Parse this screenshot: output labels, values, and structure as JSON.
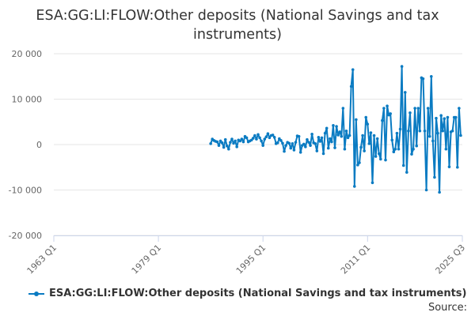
{
  "chart_data": {
    "type": "line",
    "title": "ESA:GG:LI:FLOW:Other deposits (National Savings and tax instruments)",
    "xlabel": "",
    "ylabel": "",
    "ylim": [
      -20000,
      20000
    ],
    "yticks": [
      20000,
      10000,
      0,
      -10000,
      -20000
    ],
    "ytick_labels": [
      "20 000",
      "10 000",
      "0",
      "-10 000",
      "-20 000"
    ],
    "xtick_labels": [
      "1963 Q1",
      "1979 Q1",
      "1995 Q1",
      "2011 Q1",
      "2025 Q3"
    ],
    "xrange": [
      "1963 Q1",
      "2025 Q3"
    ],
    "grid": true,
    "legend_position": "bottom",
    "series": [
      {
        "name": "ESA:GG:LI:FLOW:Other deposits (National Savings and tax instruments)",
        "color": "#0a7bc2",
        "start": "1987 Q1",
        "frequency": "quarterly",
        "values": [
          200,
          1200,
          900,
          700,
          600,
          -200,
          800,
          400,
          -600,
          1100,
          -300,
          -1000,
          500,
          1200,
          300,
          800,
          -500,
          1000,
          800,
          1200,
          600,
          1800,
          1500,
          600,
          800,
          1000,
          1400,
          2000,
          1200,
          2200,
          1500,
          800,
          -200,
          1200,
          1700,
          2400,
          1500,
          2000,
          2100,
          1600,
          200,
          400,
          1300,
          900,
          300,
          -1500,
          -200,
          500,
          300,
          -800,
          200,
          -1200,
          500,
          1900,
          1800,
          -1700,
          -200,
          100,
          -500,
          1100,
          500,
          -200,
          2300,
          400,
          200,
          -1400,
          1600,
          700,
          1500,
          -2000,
          2500,
          3600,
          -800,
          1300,
          600,
          4200,
          -700,
          4000,
          2100,
          2800,
          1800,
          8000,
          -1000,
          3000,
          1500,
          2000,
          12800,
          16500,
          -9200,
          5500,
          -4500,
          -4000,
          -600,
          2000,
          -1400,
          6000,
          4500,
          200,
          2600,
          -8400,
          2000,
          -2600,
          1300,
          -2000,
          -3200,
          5300,
          8000,
          -3400,
          8500,
          6500,
          6800,
          1000,
          -1600,
          -1000,
          2500,
          -1000,
          3400,
          17200,
          -4600,
          11500,
          -6100,
          3000,
          7000,
          -2100,
          -1000,
          8000,
          -300,
          8000,
          3000,
          14700,
          14500,
          3000,
          -10000,
          8000,
          1800,
          15000,
          800,
          -7200,
          5800,
          2500,
          -10500,
          6400,
          3000,
          5700,
          -1000,
          6000,
          -4900,
          2800,
          3000,
          6000,
          6000,
          -5000,
          8000,
          2000
        ]
      }
    ]
  },
  "legend": {
    "label": "ESA:GG:LI:FLOW:Other deposits (National Savings and tax instruments)"
  },
  "source_label": "Source:"
}
